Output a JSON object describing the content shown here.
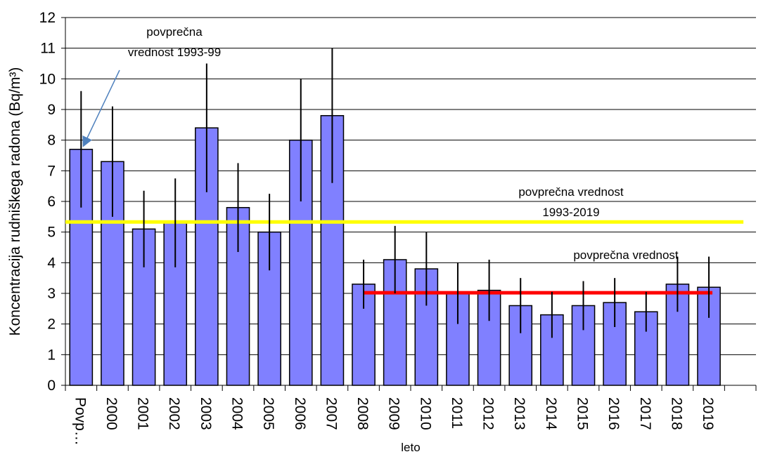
{
  "chart_data": {
    "type": "bar",
    "y_axis_label": "Koncentracija rudniškega radona (Bq/m³)",
    "x_axis_label": "leto",
    "categories": [
      "Povp…",
      "2000",
      "2001",
      "2002",
      "2003",
      "2004",
      "2005",
      "2006",
      "2007",
      "2008",
      "2009",
      "2010",
      "2011",
      "2012",
      "2013",
      "2014",
      "2015",
      "2016",
      "2017",
      "2018",
      "2019",
      null
    ],
    "values": [
      7.7,
      7.3,
      5.1,
      5.3,
      8.4,
      5.8,
      5.0,
      8.0,
      8.8,
      3.3,
      4.1,
      3.8,
      3.0,
      3.1,
      2.6,
      2.3,
      2.6,
      2.7,
      2.4,
      3.3,
      3.2,
      null
    ],
    "errors": [
      1.9,
      1.8,
      1.25,
      1.45,
      2.1,
      1.45,
      1.25,
      2.0,
      2.2,
      0.8,
      1.1,
      1.2,
      1.0,
      1.0,
      0.9,
      0.75,
      0.8,
      0.8,
      0.65,
      0.9,
      1.0,
      null
    ],
    "color": "#8080ff",
    "ylim": [
      0,
      12
    ],
    "yticks": [
      0,
      1,
      2,
      3,
      4,
      5,
      6,
      7,
      8,
      9,
      10,
      11,
      12
    ],
    "grid": true,
    "reference_lines": [
      {
        "value": 5.33,
        "color": "#ffff00",
        "label": [
          "povprečna vrednost",
          "1993-2019"
        ]
      },
      {
        "value": 3.02,
        "color": "#ff0000",
        "span": [
          "2008",
          "2019"
        ],
        "label": [
          "povprečna vrednost"
        ]
      }
    ],
    "annotations": [
      {
        "text": [
          "povprečna",
          "vrednost 1993-99"
        ],
        "points_to": "Povp…"
      }
    ]
  }
}
